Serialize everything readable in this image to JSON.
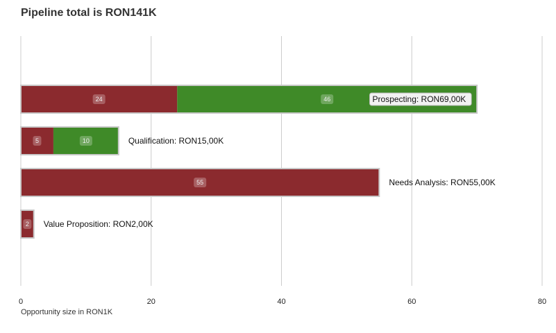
{
  "chart_data": {
    "type": "bar",
    "orientation": "horizontal",
    "stacked": true,
    "title": "Pipeline total is RON141K",
    "xlabel": "Opportunity size in RON1K",
    "ylabel": "",
    "xlim": [
      0,
      80
    ],
    "x_ticks": [
      "0",
      "20",
      "40",
      "60",
      "80"
    ],
    "grid": true,
    "categories": [
      "Prospecting: RON69,00K",
      "Qualification: RON15,00K",
      "Needs Analysis: RON55,00K",
      "Value Proposition: RON2,00K"
    ],
    "series": [
      {
        "color": "#8b2a2e",
        "values": [
          24,
          5,
          55,
          2
        ],
        "data_labels": [
          "24",
          "5",
          "55",
          "2"
        ]
      },
      {
        "color": "#3f8a28",
        "values": [
          46,
          10,
          0,
          0
        ],
        "data_labels": [
          "46",
          "10",
          "",
          ""
        ]
      }
    ]
  }
}
